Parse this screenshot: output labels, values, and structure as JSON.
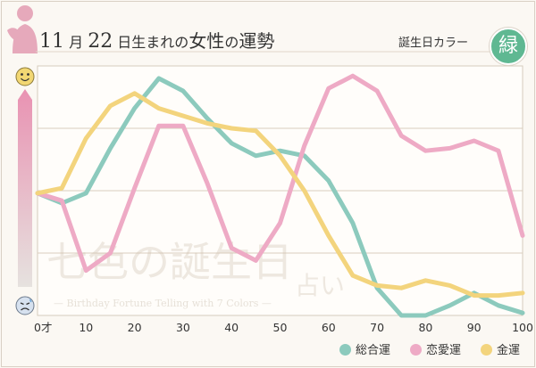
{
  "header": {
    "month": "11",
    "month_suffix": "月",
    "day": "22",
    "title_mid": "日生まれの",
    "title_strong": "女性",
    "title_no": "の",
    "title_end": "運勢",
    "color_label": "誕生日カラー",
    "color_name": "緑",
    "color_hex": "#5fb892"
  },
  "watermark": {
    "line1": "七色の誕生日",
    "line2": "占い",
    "subtitle": "— Birthday Fortune Telling with 7 Colors —"
  },
  "mood": {
    "top": "happy-face-icon",
    "bottom": "sad-face-icon"
  },
  "chart_data": {
    "type": "line",
    "x_unit": "才",
    "xlim": [
      0,
      100
    ],
    "ylim": [
      0,
      100
    ],
    "x_ticks": [
      "0才",
      "10",
      "20",
      "30",
      "40",
      "50",
      "60",
      "70",
      "80",
      "90",
      "100"
    ],
    "x_tick_values": [
      0,
      10,
      20,
      30,
      40,
      50,
      60,
      70,
      80,
      90,
      100
    ],
    "series": [
      {
        "name": "総合運",
        "color": "#8ccabd",
        "x": [
          0,
          5,
          10,
          15,
          20,
          25,
          30,
          35,
          40,
          45,
          50,
          55,
          60,
          65,
          70,
          75,
          80,
          85,
          90,
          95,
          100
        ],
        "values": [
          49,
          45,
          49,
          67,
          83,
          95,
          90,
          79,
          69,
          64,
          66,
          64,
          54,
          37,
          11,
          0,
          0,
          4,
          9,
          4,
          1
        ]
      },
      {
        "name": "恋愛運",
        "color": "#eeaac5",
        "x": [
          0,
          5,
          10,
          15,
          20,
          25,
          30,
          35,
          40,
          45,
          50,
          55,
          60,
          65,
          70,
          75,
          80,
          85,
          90,
          95,
          100
        ],
        "values": [
          49,
          46,
          18,
          25,
          51,
          76,
          76,
          53,
          27,
          22,
          37,
          68,
          91,
          96,
          90,
          72,
          66,
          67,
          70,
          66,
          32
        ]
      },
      {
        "name": "金運",
        "color": "#f3d47d",
        "x": [
          0,
          5,
          10,
          15,
          20,
          25,
          30,
          35,
          40,
          45,
          50,
          55,
          60,
          65,
          70,
          75,
          80,
          85,
          90,
          95,
          100
        ],
        "values": [
          49,
          51,
          71,
          84,
          89,
          83,
          80,
          77,
          75,
          74,
          64,
          50,
          32,
          16,
          12,
          11,
          14,
          12,
          8,
          8,
          9
        ]
      }
    ]
  }
}
